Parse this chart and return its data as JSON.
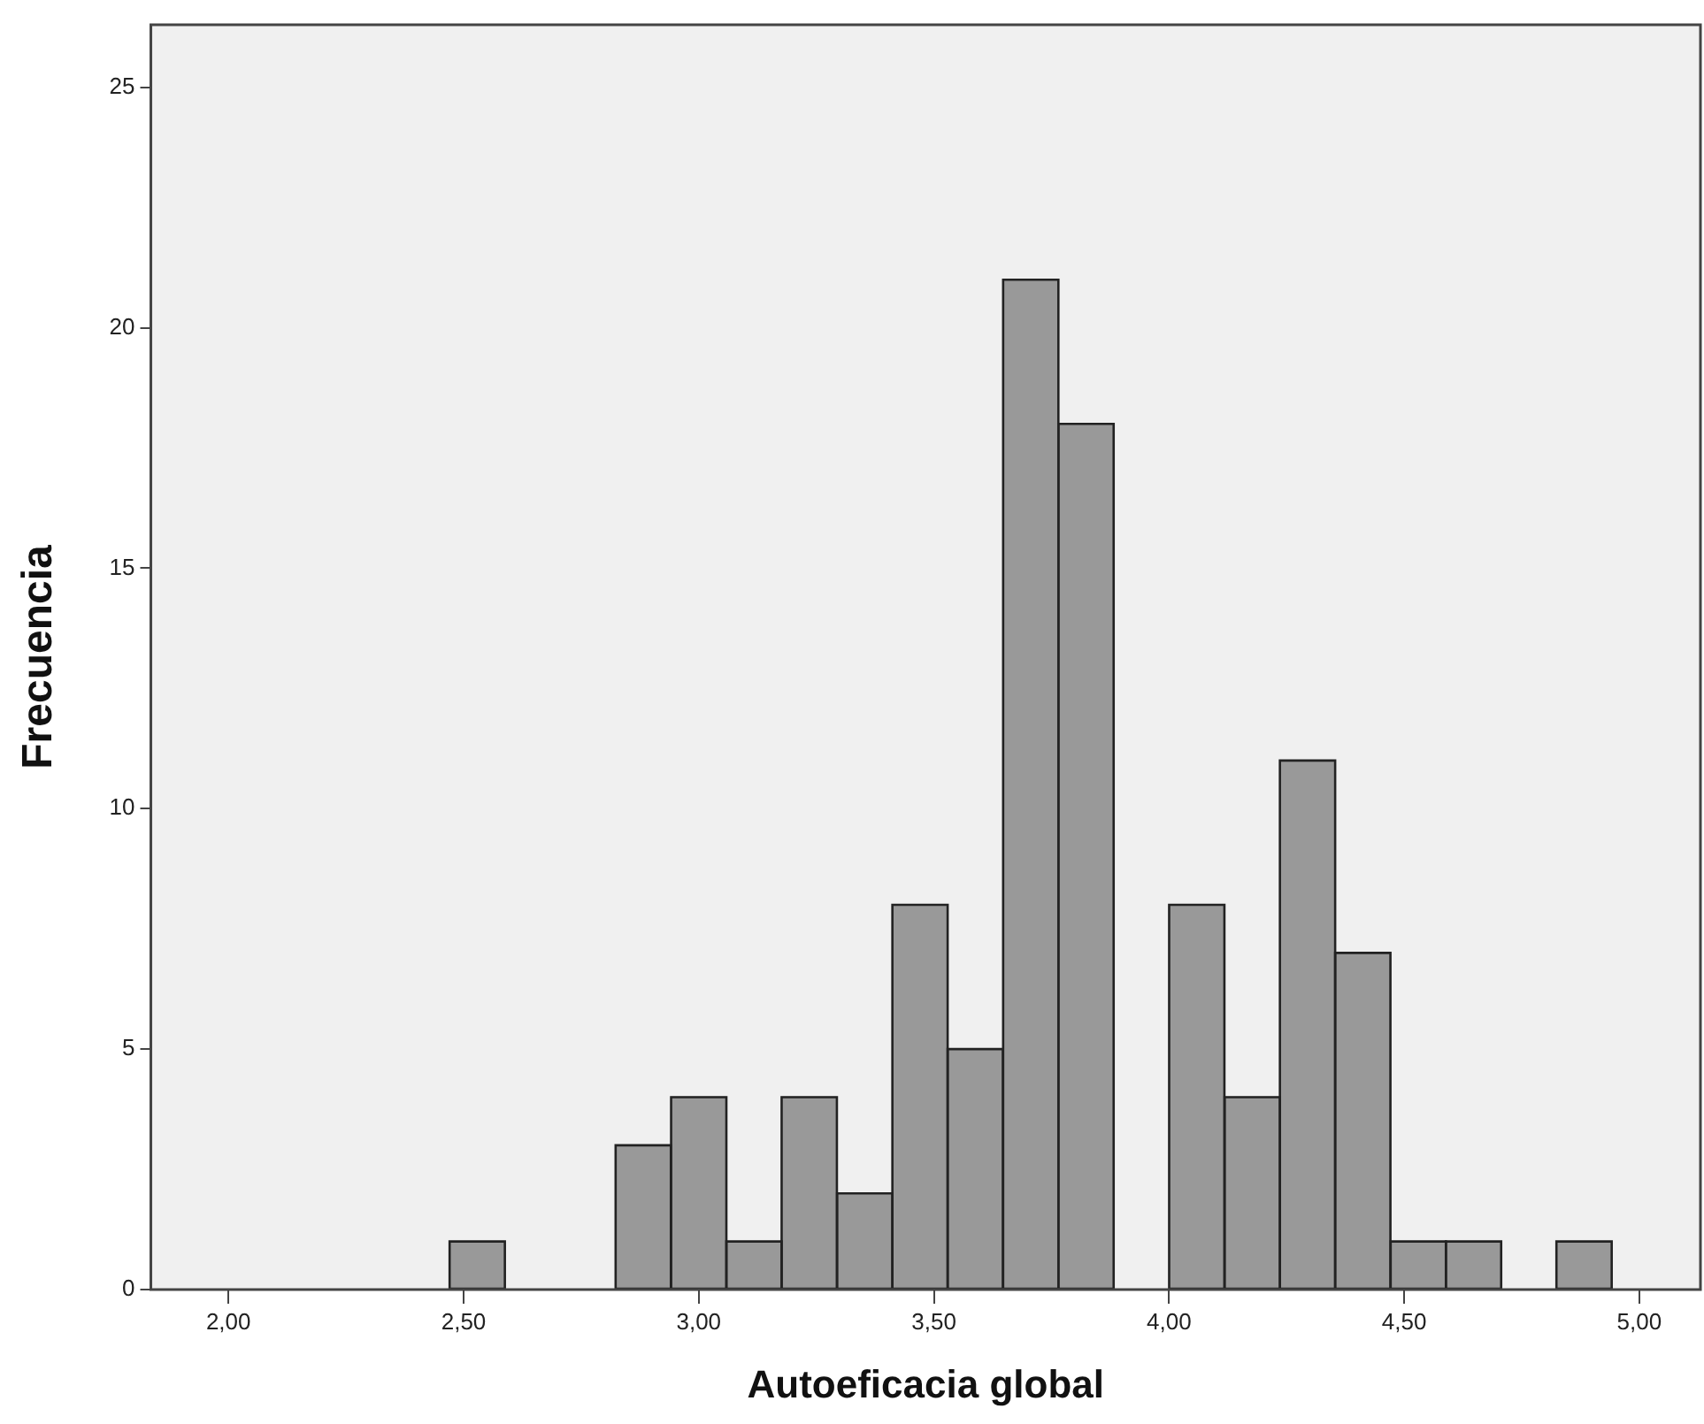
{
  "chart_data": {
    "type": "histogram",
    "xlabel": "Autoeficacia global",
    "ylabel": "Frecuencia",
    "bins": [
      2.47,
      2.588,
      2.705,
      2.823,
      2.941,
      3.059,
      3.176,
      3.294,
      3.412,
      3.529,
      3.647,
      3.765,
      3.882,
      4.0,
      4.118,
      4.236,
      4.353,
      4.471,
      4.589,
      4.706,
      4.824,
      4.941
    ],
    "values": [
      1,
      0,
      0,
      3,
      4,
      1,
      4,
      2,
      8,
      5,
      21,
      18,
      0,
      8,
      4,
      11,
      7,
      1,
      1,
      0,
      1
    ],
    "color": "#999999",
    "xlim": [
      1.835,
      5.13
    ],
    "xticks": [
      {
        "value": 2,
        "label": "2,00"
      },
      {
        "value": 2.5,
        "label": "2,50"
      },
      {
        "value": 3,
        "label": "3,00"
      },
      {
        "value": 3.5,
        "label": "3,50"
      },
      {
        "value": 4,
        "label": "4,00"
      },
      {
        "value": 4.5,
        "label": "4,50"
      },
      {
        "value": 5,
        "label": "5,00"
      }
    ],
    "ylim": [
      0,
      26.3
    ],
    "yticks": [
      0,
      5,
      10,
      15,
      20,
      25
    ],
    "grid": false,
    "legend": false
  }
}
